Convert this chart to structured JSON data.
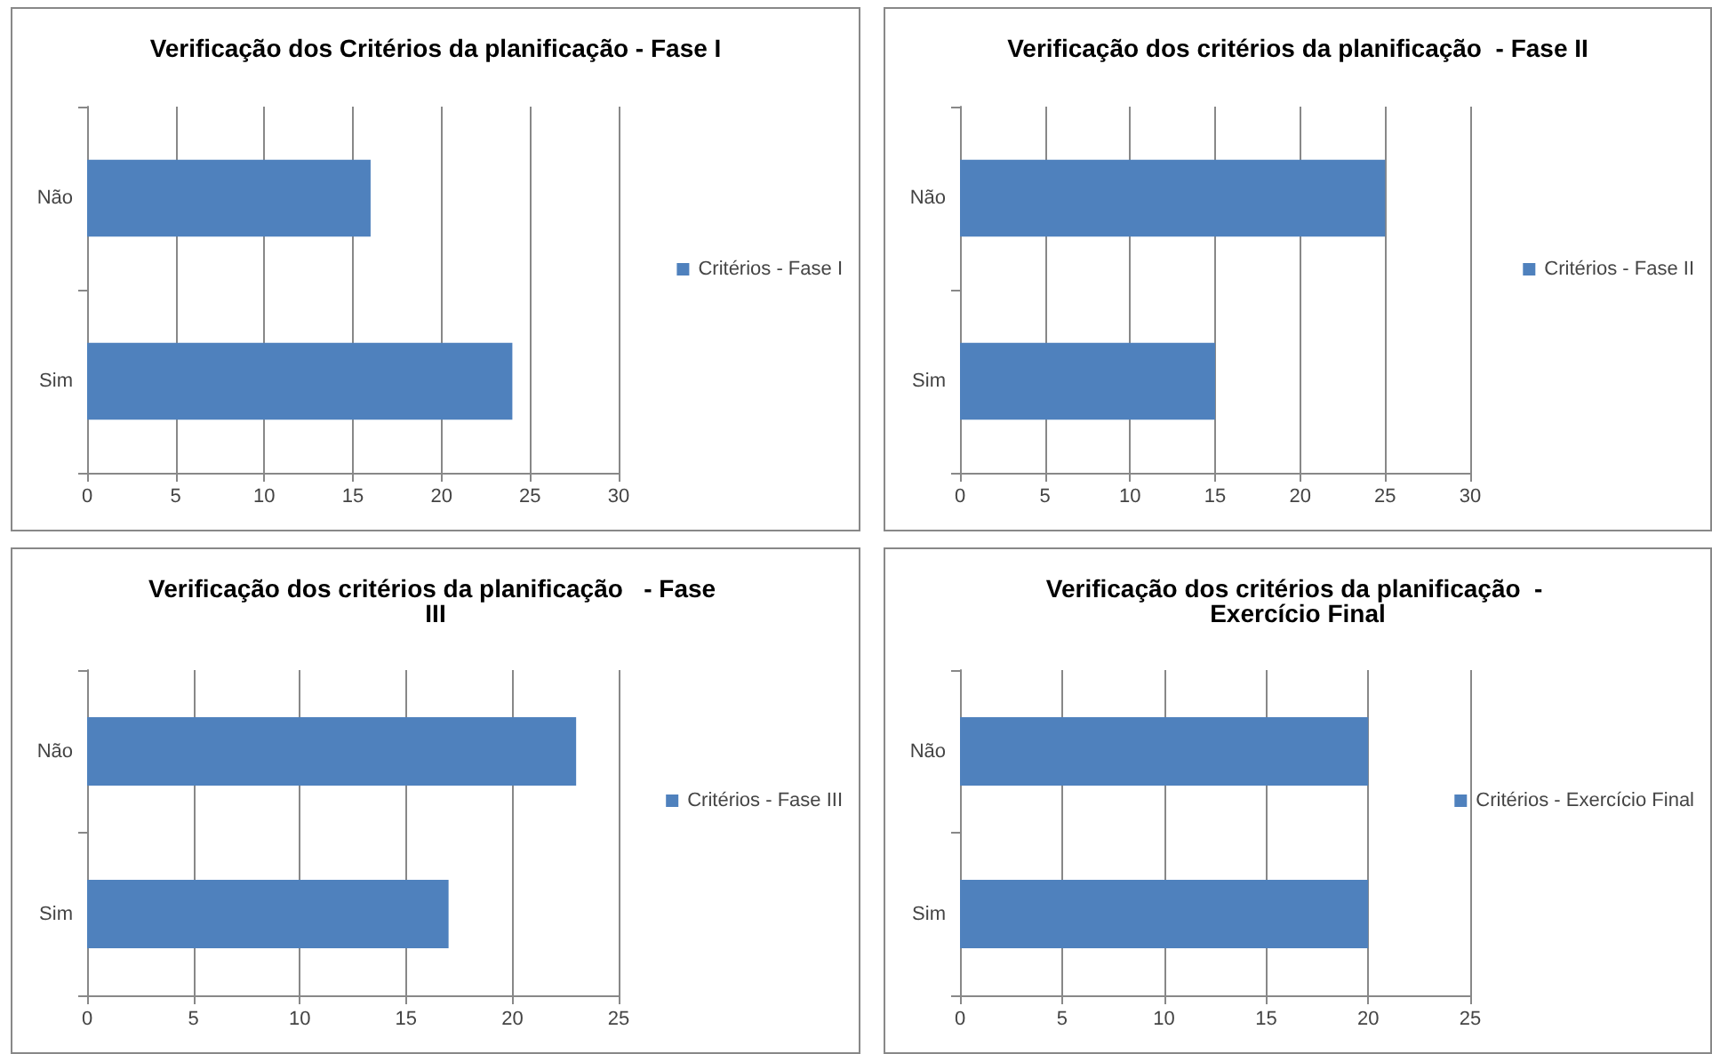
{
  "chart_data": [
    {
      "type": "bar",
      "orientation": "horizontal",
      "title": "Verificação dos Critérios da planificação - Fase I",
      "categories": [
        "Não",
        "Sim"
      ],
      "series": [
        {
          "name": "Critérios - Fase I",
          "color": "#4f81bd",
          "values": [
            16,
            24
          ]
        }
      ],
      "xlim": [
        0,
        30
      ],
      "xticks": [
        0,
        5,
        10,
        15,
        20,
        25,
        30
      ],
      "grid": "x",
      "legend": "right"
    },
    {
      "type": "bar",
      "orientation": "horizontal",
      "title": "Verificação dos critérios da planificação  - Fase II",
      "categories": [
        "Não",
        "Sim"
      ],
      "series": [
        {
          "name": "Critérios - Fase II",
          "color": "#4f81bd",
          "values": [
            25,
            15
          ]
        }
      ],
      "xlim": [
        0,
        30
      ],
      "xticks": [
        0,
        5,
        10,
        15,
        20,
        25,
        30
      ],
      "grid": "x",
      "legend": "right"
    },
    {
      "type": "bar",
      "orientation": "horizontal",
      "title": "Verificação dos critérios da planificação   - Fase III",
      "categories": [
        "Não",
        "Sim"
      ],
      "series": [
        {
          "name": "Critérios - Fase III",
          "color": "#4f81bd",
          "values": [
            23,
            17
          ]
        }
      ],
      "xlim": [
        0,
        25
      ],
      "xticks": [
        0,
        5,
        10,
        15,
        20,
        25
      ],
      "grid": "x",
      "legend": "right"
    },
    {
      "type": "bar",
      "orientation": "horizontal",
      "title": "Verificação dos critérios da planificação  - Exercício Final",
      "categories": [
        "Não",
        "Sim"
      ],
      "series": [
        {
          "name": "Critérios - Exercício Final",
          "color": "#4f81bd",
          "values": [
            20,
            20
          ]
        }
      ],
      "xlim": [
        0,
        25
      ],
      "xticks": [
        0,
        5,
        10,
        15,
        20,
        25
      ],
      "grid": "x",
      "legend": "right"
    }
  ]
}
